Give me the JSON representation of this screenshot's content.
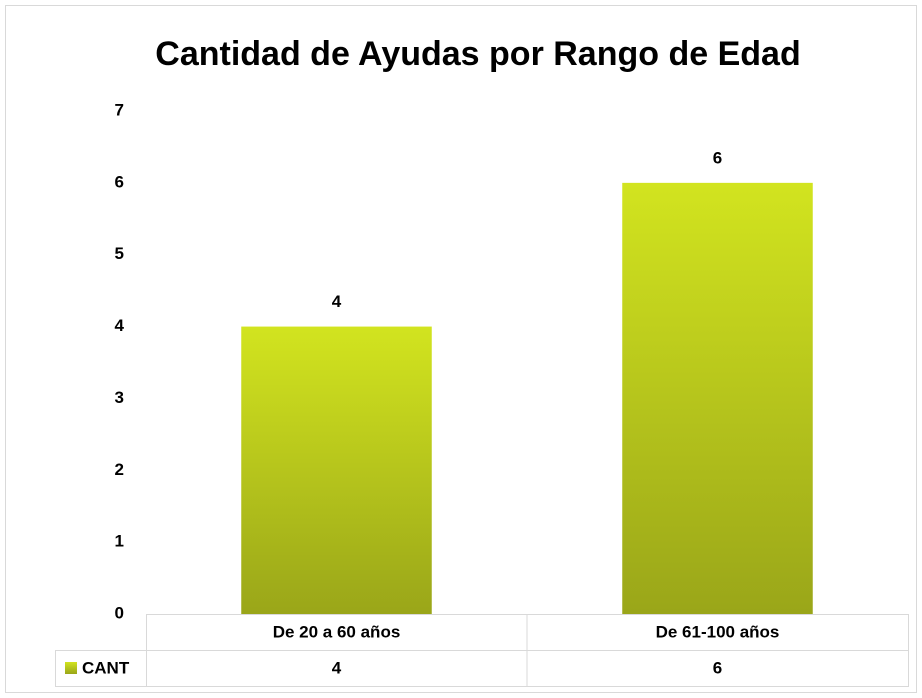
{
  "chart_data": {
    "type": "bar",
    "title": "Cantidad de Ayudas por Rango de Edad",
    "categories": [
      "De 20 a 60 años",
      "De 61-100 años"
    ],
    "series": [
      {
        "name": "CANT",
        "color": "#d2e41f",
        "values": [
          4,
          6
        ]
      }
    ],
    "ylim": [
      0,
      7
    ],
    "yticks": [
      0,
      1,
      2,
      3,
      4,
      5,
      6,
      7
    ],
    "grid": false,
    "data_table": true
  }
}
